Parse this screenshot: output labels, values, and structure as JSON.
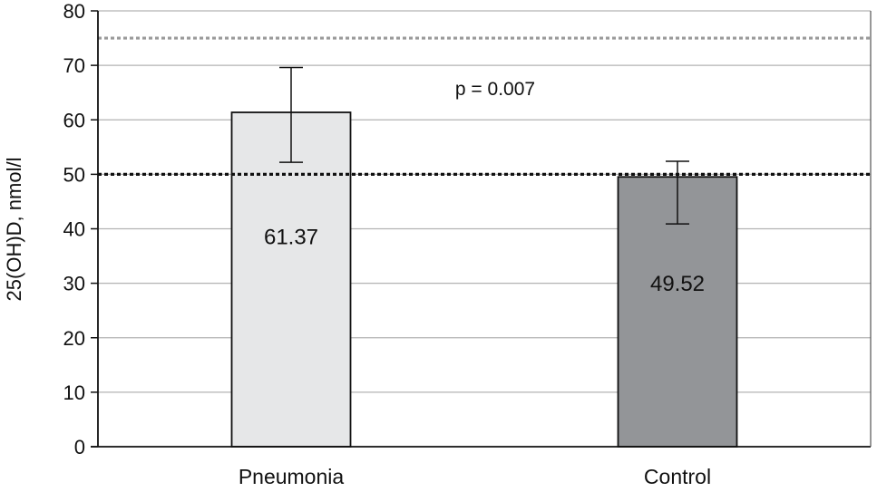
{
  "chart_data": {
    "type": "bar",
    "title": "",
    "xlabel": "",
    "ylabel": "25(OH)D, nmol/l",
    "ylim": [
      0,
      80
    ],
    "yticks": [
      0,
      10,
      20,
      30,
      40,
      50,
      60,
      70,
      80
    ],
    "grid": true,
    "categories": [
      "Pneumonia",
      "Control"
    ],
    "values": [
      61.37,
      49.52
    ],
    "value_labels": [
      "61.37",
      "49.52"
    ],
    "error_bars": [
      {
        "low": 52.2,
        "high": 69.6
      },
      {
        "low": 40.9,
        "high": 52.4
      }
    ],
    "bar_colors": [
      "#e6e7e8",
      "#939598"
    ],
    "reference_lines": [
      {
        "value": 75,
        "style": "dotted",
        "color": "#9a9a9a"
      },
      {
        "value": 50,
        "style": "dotted",
        "color": "#111111"
      }
    ],
    "annotations": [
      {
        "text": "p = 0.007",
        "x_between": [
          0,
          1
        ],
        "y": 64.5
      }
    ]
  }
}
